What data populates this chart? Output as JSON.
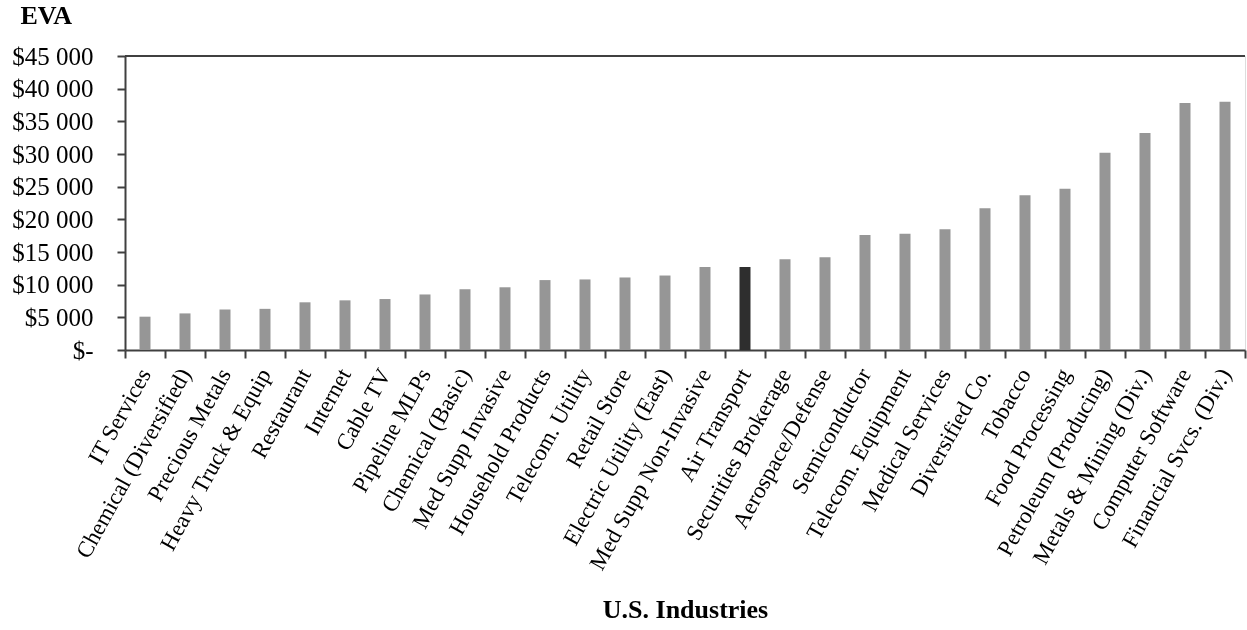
{
  "chart_data": {
    "type": "bar",
    "ylabel": "EVA",
    "xlabel": "U.S. Industries",
    "categories": [
      "IT Services",
      "Chemical (Diversified)",
      "Precious Metals",
      "Heavy Truck & Equip",
      "Restaurant",
      "Internet",
      "Cable TV",
      "Pipeline MLPs",
      "Chemical (Basic)",
      "Med Supp Invasive",
      "Household Products",
      "Telecom. Utility",
      "Retail Store",
      "Electric Utility (East)",
      "Med Supp Non-Invasive",
      "Air Transport",
      "Securities Brokerage",
      "Aerospace/Defense",
      "Semiconductor",
      "Telecom. Equipment",
      "Medical Services",
      "Diversified Co.",
      "Tobacco",
      "Food Processing",
      "Petroleum (Producing)",
      "Metals & Mining (Div.)",
      "Computer Software",
      "Financial Svcs. (Div.)"
    ],
    "values": [
      5100,
      5600,
      6200,
      6300,
      7300,
      7600,
      7800,
      8500,
      9300,
      9600,
      10700,
      10800,
      11100,
      11400,
      12700,
      12700,
      13900,
      14200,
      17600,
      17800,
      18500,
      21700,
      23700,
      24700,
      30200,
      33200,
      37800,
      38000
    ],
    "colors": [
      "#969696",
      "#969696",
      "#969696",
      "#969696",
      "#969696",
      "#969696",
      "#969696",
      "#969696",
      "#969696",
      "#969696",
      "#969696",
      "#969696",
      "#969696",
      "#969696",
      "#969696",
      "#2e2e2e",
      "#969696",
      "#969696",
      "#969696",
      "#969696",
      "#969696",
      "#969696",
      "#969696",
      "#969696",
      "#969696",
      "#969696",
      "#969696",
      "#969696"
    ],
    "ylim": [
      0,
      45000
    ],
    "yticks": [
      {
        "value": 0,
        "label": "$-"
      },
      {
        "value": 5000,
        "label": "$5 000"
      },
      {
        "value": 10000,
        "label": "$10 000"
      },
      {
        "value": 15000,
        "label": "$15 000"
      },
      {
        "value": 20000,
        "label": "$20 000"
      },
      {
        "value": 25000,
        "label": "$25 000"
      },
      {
        "value": 30000,
        "label": "$30 000"
      },
      {
        "value": 35000,
        "label": "$35 000"
      },
      {
        "value": 40000,
        "label": "$40 000"
      },
      {
        "value": 45000,
        "label": "$45 000"
      }
    ],
    "grid": false,
    "legend": false
  }
}
